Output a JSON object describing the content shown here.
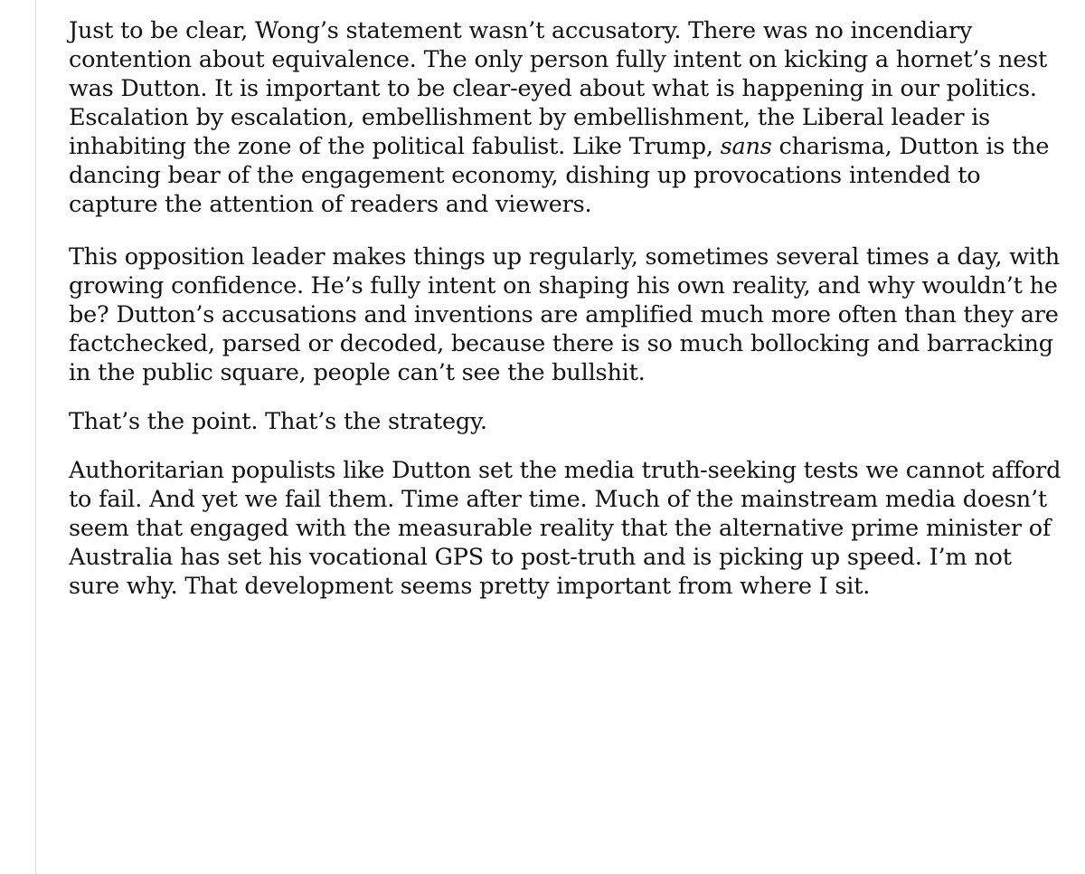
{
  "article": {
    "paragraphs": [
      {
        "before": "Just to be clear, Wong’s statement wasn’t accusatory. There was no incendiary contention about equivalence. The only person fully intent on kicking a hornet’s nest was Dutton. It is important to be clear-eyed about what is happening in our politics. Escalation by escalation, embellishment by embellishment, the Liberal leader is inhabiting the zone of the political fabulist. Like Trump, ",
        "emphasis": "sans",
        "after": " charisma, Dutton is the dancing bear of the engagement economy, dishing up provocations intended to capture the attention of readers and viewers."
      },
      {
        "text": "This opposition leader makes things up regularly, sometimes several times a day, with growing confidence. He’s fully intent on shaping his own reality, and why wouldn’t he be? Dutton’s accusations and inventions are amplified much more often than they are factchecked, parsed or decoded, because there is so much bollocking and barracking in the public square, people can’t see the bullshit."
      },
      {
        "text": "That’s the point. That’s the strategy."
      },
      {
        "text": "Authoritarian populists like Dutton set the media truth-seeking tests we cannot afford to fail. And yet we fail them. Time after time. Much of the mainstream media doesn’t seem that engaged with the measurable reality that the alternative prime minister of Australia has set his vocational GPS to post-truth and is picking up speed. I’m not sure why. That development seems pretty important from where I sit."
      }
    ]
  }
}
